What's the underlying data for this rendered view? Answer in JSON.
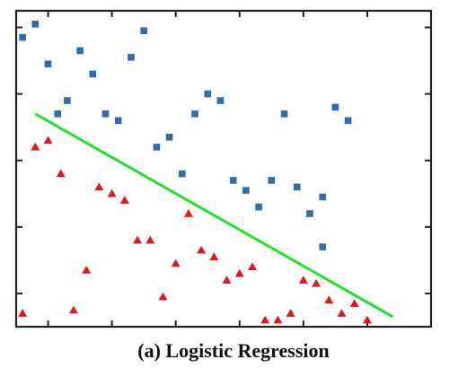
{
  "caption": "(a) Logistic Regression",
  "colors": {
    "class_a": "#2f6db0",
    "class_b": "#dd1a1a",
    "boundary": "#22e02a",
    "frame": "#222222"
  },
  "chart_data": {
    "type": "scatter",
    "title": "",
    "xlabel": "",
    "ylabel": "",
    "xlim": [
      0,
      13
    ],
    "ylim": [
      0,
      9.5
    ],
    "grid": false,
    "legend": "none",
    "series": [
      {
        "marker": "square",
        "color": "#2f6db0",
        "points": [
          [
            0.2,
            8.7
          ],
          [
            0.6,
            9.1
          ],
          [
            1.0,
            7.9
          ],
          [
            1.6,
            6.8
          ],
          [
            1.3,
            6.4
          ],
          [
            2.0,
            8.3
          ],
          [
            2.4,
            7.6
          ],
          [
            2.8,
            6.4
          ],
          [
            3.2,
            6.2
          ],
          [
            3.6,
            8.1
          ],
          [
            4.0,
            8.9
          ],
          [
            4.4,
            5.4
          ],
          [
            4.8,
            5.7
          ],
          [
            5.2,
            4.6
          ],
          [
            5.6,
            6.4
          ],
          [
            6.0,
            7.0
          ],
          [
            6.4,
            6.8
          ],
          [
            6.8,
            4.4
          ],
          [
            7.2,
            4.1
          ],
          [
            7.6,
            3.6
          ],
          [
            8.0,
            4.4
          ],
          [
            8.4,
            6.4
          ],
          [
            8.8,
            4.2
          ],
          [
            9.2,
            3.4
          ],
          [
            9.6,
            3.9
          ],
          [
            9.6,
            2.4
          ],
          [
            10.0,
            6.6
          ],
          [
            10.4,
            6.2
          ]
        ]
      },
      {
        "marker": "triangle",
        "color": "#dd1a1a",
        "points": [
          [
            0.2,
            0.4
          ],
          [
            0.6,
            5.4
          ],
          [
            1.0,
            5.6
          ],
          [
            1.4,
            4.6
          ],
          [
            1.8,
            0.5
          ],
          [
            2.2,
            1.7
          ],
          [
            2.6,
            4.2
          ],
          [
            3.0,
            4.0
          ],
          [
            3.4,
            3.8
          ],
          [
            3.8,
            2.6
          ],
          [
            4.2,
            2.6
          ],
          [
            4.6,
            0.9
          ],
          [
            5.0,
            1.9
          ],
          [
            5.4,
            3.4
          ],
          [
            5.8,
            2.3
          ],
          [
            6.2,
            2.1
          ],
          [
            6.6,
            1.4
          ],
          [
            7.0,
            1.6
          ],
          [
            7.4,
            1.8
          ],
          [
            7.8,
            0.2
          ],
          [
            8.2,
            0.2
          ],
          [
            8.6,
            0.4
          ],
          [
            9.0,
            1.4
          ],
          [
            9.4,
            1.3
          ],
          [
            9.8,
            0.8
          ],
          [
            10.2,
            0.4
          ],
          [
            10.6,
            0.7
          ],
          [
            11.0,
            0.2
          ]
        ]
      }
    ],
    "boundary_line": {
      "x": [
        0.6,
        11.8
      ],
      "y": [
        6.4,
        0.3
      ]
    }
  }
}
